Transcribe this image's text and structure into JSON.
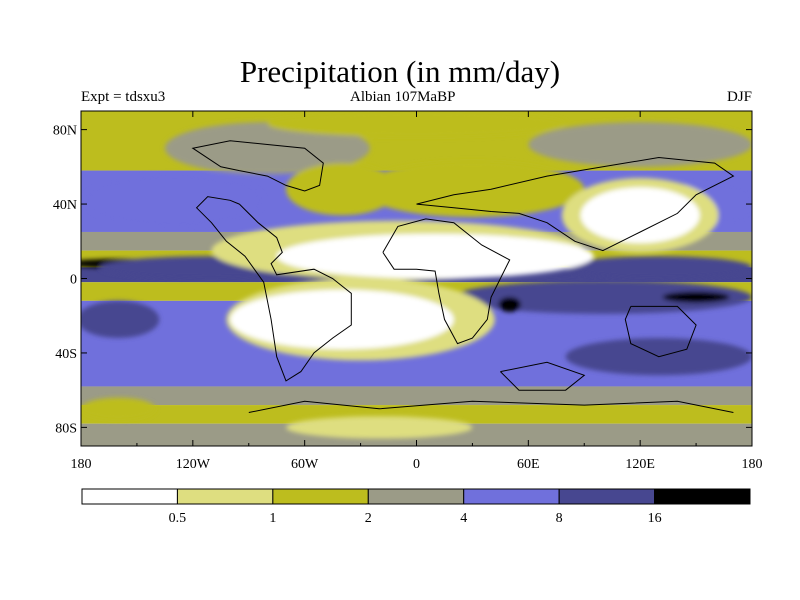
{
  "title": "Precipitation (in mm/day)",
  "header": {
    "left": "Expt = tdsxu3",
    "center": "Albian   107MaBP",
    "right": "DJF"
  },
  "map": {
    "projection": "equirectangular",
    "lon_range": [
      -180,
      180
    ],
    "lat_range": [
      -90,
      90
    ],
    "lon_ticks": [
      {
        "value": -180,
        "label": "180"
      },
      {
        "value": -120,
        "label": "120W"
      },
      {
        "value": -60,
        "label": "60W"
      },
      {
        "value": 0,
        "label": "0"
      },
      {
        "value": 60,
        "label": "60E"
      },
      {
        "value": 120,
        "label": "120E"
      },
      {
        "value": 180,
        "label": "180"
      }
    ],
    "lat_ticks": [
      {
        "value": 80,
        "label": "80N"
      },
      {
        "value": 40,
        "label": "40N"
      },
      {
        "value": 0,
        "label": "0"
      },
      {
        "value": -40,
        "label": "40S"
      },
      {
        "value": -80,
        "label": "80S"
      }
    ],
    "palette": [
      "#ffffff",
      "#dede80",
      "#bdbd1e",
      "#9b9b87",
      "#7070dc",
      "#474790",
      "#000000"
    ],
    "bands": [
      {
        "lat": [
          58,
          90
        ],
        "level": 2
      },
      {
        "lat": [
          25,
          58
        ],
        "level": 4
      },
      {
        "lat": [
          15,
          25
        ],
        "level": 3
      },
      {
        "lat": [
          6,
          15
        ],
        "level": 2
      },
      {
        "lat": [
          -2,
          6
        ],
        "level": 5
      },
      {
        "lat": [
          -12,
          -2
        ],
        "level": 2
      },
      {
        "lat": [
          -58,
          -12
        ],
        "level": 4
      },
      {
        "lat": [
          -68,
          -58
        ],
        "level": 3
      },
      {
        "lat": [
          -78,
          -68
        ],
        "level": 2
      },
      {
        "lat": [
          -90,
          -78
        ],
        "level": 3
      }
    ],
    "blobs": [
      {
        "lon": -80,
        "lat": 70,
        "rx": 55,
        "ry": 14,
        "level": 3
      },
      {
        "lon": 120,
        "lat": 72,
        "rx": 60,
        "ry": 12,
        "level": 3
      },
      {
        "lon": 0,
        "lat": 83,
        "rx": 80,
        "ry": 7,
        "level": 2
      },
      {
        "lon": -130,
        "lat": 42,
        "rx": 48,
        "ry": 14,
        "level": 4
      },
      {
        "lon": 155,
        "lat": 40,
        "rx": 28,
        "ry": 12,
        "level": 4
      },
      {
        "lon": 30,
        "lat": 48,
        "rx": 60,
        "ry": 15,
        "level": 2
      },
      {
        "lon": -40,
        "lat": 48,
        "rx": 30,
        "ry": 14,
        "level": 2
      },
      {
        "lon": -160,
        "lat": 8,
        "rx": 28,
        "ry": 2.5,
        "level": 6
      },
      {
        "lon": -110,
        "lat": 6,
        "rx": 60,
        "ry": 6,
        "level": 5
      },
      {
        "lon": 130,
        "lat": 6,
        "rx": 50,
        "ry": 6,
        "level": 5
      },
      {
        "lon": 100,
        "lat": -10,
        "rx": 80,
        "ry": 9,
        "level": 5
      },
      {
        "lon": 50,
        "lat": -14,
        "rx": 6,
        "ry": 4,
        "level": 6
      },
      {
        "lon": 150,
        "lat": -10,
        "rx": 18,
        "ry": 3,
        "level": 6
      },
      {
        "lon": -160,
        "lat": -22,
        "rx": 22,
        "ry": 10,
        "level": 5
      },
      {
        "lon": 130,
        "lat": -42,
        "rx": 50,
        "ry": 10,
        "level": 5
      },
      {
        "lon": -160,
        "lat": -70,
        "rx": 20,
        "ry": 6,
        "level": 2
      },
      {
        "lon": -10,
        "lat": 15,
        "rx": 100,
        "ry": 16,
        "level": 1
      },
      {
        "lon": 120,
        "lat": 34,
        "rx": 42,
        "ry": 20,
        "level": 1
      },
      {
        "lon": -30,
        "lat": -22,
        "rx": 72,
        "ry": 22,
        "level": 1
      },
      {
        "lon": 10,
        "lat": 12,
        "rx": 85,
        "ry": 12,
        "level": 0
      },
      {
        "lon": 120,
        "lat": 34,
        "rx": 32,
        "ry": 15,
        "level": 0
      },
      {
        "lon": -40,
        "lat": -22,
        "rx": 60,
        "ry": 16,
        "level": 0
      },
      {
        "lon": -20,
        "lat": -80,
        "rx": 50,
        "ry": 6,
        "level": 1
      }
    ],
    "coastlines": [
      [
        [
          -95,
          58
        ],
        [
          -80,
          55
        ],
        [
          -70,
          50
        ],
        [
          -60,
          47
        ],
        [
          -52,
          50
        ],
        [
          -50,
          62
        ],
        [
          -60,
          70
        ],
        [
          -80,
          72
        ],
        [
          -100,
          74
        ],
        [
          -120,
          70
        ],
        [
          -105,
          60
        ],
        [
          -95,
          58
        ]
      ],
      [
        [
          -95,
          40
        ],
        [
          -85,
          30
        ],
        [
          -75,
          22
        ],
        [
          -72,
          14
        ],
        [
          -78,
          8
        ],
        [
          -75,
          2
        ],
        [
          -55,
          5
        ],
        [
          -45,
          0
        ],
        [
          -35,
          -8
        ],
        [
          -35,
          -25
        ],
        [
          -45,
          -32
        ],
        [
          -55,
          -40
        ],
        [
          -62,
          -50
        ],
        [
          -70,
          -55
        ],
        [
          -75,
          -42
        ],
        [
          -78,
          -22
        ],
        [
          -82,
          -2
        ],
        [
          -92,
          12
        ],
        [
          -102,
          20
        ],
        [
          -110,
          30
        ],
        [
          -118,
          38
        ],
        [
          -112,
          44
        ],
        [
          -100,
          42
        ],
        [
          -95,
          40
        ]
      ],
      [
        [
          -18,
          14
        ],
        [
          -12,
          5
        ],
        [
          0,
          5
        ],
        [
          10,
          4
        ],
        [
          12,
          -8
        ],
        [
          15,
          -22
        ],
        [
          22,
          -35
        ],
        [
          30,
          -32
        ],
        [
          38,
          -22
        ],
        [
          40,
          -10
        ],
        [
          45,
          0
        ],
        [
          50,
          10
        ],
        [
          35,
          18
        ],
        [
          20,
          30
        ],
        [
          5,
          32
        ],
        [
          -10,
          28
        ],
        [
          -18,
          14
        ]
      ],
      [
        [
          0,
          40
        ],
        [
          20,
          45
        ],
        [
          40,
          48
        ],
        [
          70,
          55
        ],
        [
          100,
          60
        ],
        [
          130,
          65
        ],
        [
          160,
          62
        ],
        [
          170,
          55
        ],
        [
          150,
          45
        ],
        [
          140,
          35
        ],
        [
          120,
          25
        ],
        [
          100,
          15
        ],
        [
          85,
          20
        ],
        [
          70,
          30
        ],
        [
          55,
          35
        ],
        [
          40,
          36
        ],
        [
          20,
          38
        ],
        [
          0,
          40
        ]
      ],
      [
        [
          115,
          -15
        ],
        [
          140,
          -15
        ],
        [
          150,
          -25
        ],
        [
          145,
          -38
        ],
        [
          130,
          -42
        ],
        [
          115,
          -35
        ],
        [
          112,
          -22
        ],
        [
          115,
          -15
        ]
      ],
      [
        [
          45,
          -50
        ],
        [
          70,
          -45
        ],
        [
          90,
          -52
        ],
        [
          80,
          -60
        ],
        [
          55,
          -60
        ],
        [
          45,
          -50
        ]
      ],
      [
        [
          -90,
          -72
        ],
        [
          -60,
          -66
        ],
        [
          -20,
          -70
        ],
        [
          30,
          -66
        ],
        [
          90,
          -68
        ],
        [
          140,
          -66
        ],
        [
          170,
          -72
        ]
      ]
    ]
  },
  "colorbar": {
    "label_values": [
      {
        "value": 0.5,
        "label": "0.5"
      },
      {
        "value": 1,
        "label": "1"
      },
      {
        "value": 2,
        "label": "2"
      },
      {
        "value": 4,
        "label": "4"
      },
      {
        "value": 8,
        "label": "8"
      },
      {
        "value": 16,
        "label": "16"
      }
    ]
  }
}
